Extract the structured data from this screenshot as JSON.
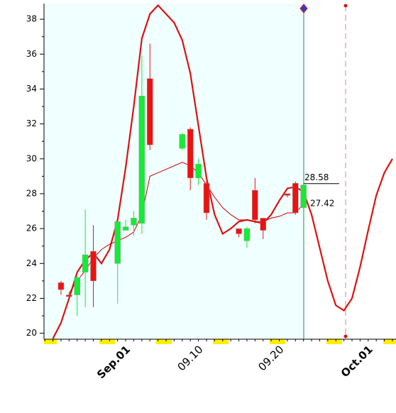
{
  "chart_data": {
    "type": "candlestick",
    "categories": [
      null,
      null,
      null,
      null,
      null,
      null,
      null,
      null,
      null,
      null,
      "Sep.01",
      null,
      null,
      null,
      null,
      null,
      null,
      null,
      null,
      "09.10",
      null,
      null,
      null,
      null,
      null,
      null,
      null,
      null,
      null,
      "09.20",
      null,
      null,
      null,
      null,
      null,
      null,
      null,
      null,
      null,
      null,
      "Oct.01",
      null,
      null,
      null
    ],
    "open": [
      null,
      null,
      22.9,
      22.2,
      22.2,
      23.5,
      24.7,
      null,
      null,
      24.0,
      25.9,
      26.2,
      26.3,
      34.6,
      null,
      null,
      null,
      30.6,
      31.7,
      28.9,
      28.6,
      null,
      null,
      null,
      26.0,
      25.3,
      28.2,
      26.6,
      null,
      null,
      28.0,
      28.6,
      27.2,
      null,
      null,
      null,
      null,
      null,
      null,
      null,
      null,
      null,
      null,
      null
    ],
    "high": [
      null,
      null,
      23.0,
      22.3,
      23.3,
      27.1,
      26.2,
      null,
      null,
      26.4,
      26.5,
      27.0,
      35.9,
      36.6,
      null,
      null,
      null,
      31.5,
      31.8,
      30.0,
      28.7,
      null,
      null,
      null,
      26.0,
      26.1,
      28.9,
      26.6,
      null,
      null,
      28.0,
      28.7,
      28.6,
      null,
      null,
      null,
      null,
      null,
      null,
      null,
      null,
      null,
      null,
      null
    ],
    "low": [
      null,
      null,
      22.2,
      22.1,
      21.0,
      21.5,
      21.5,
      null,
      null,
      21.7,
      25.9,
      25.6,
      25.7,
      30.5,
      null,
      null,
      null,
      30.5,
      28.2,
      28.5,
      26.5,
      null,
      null,
      null,
      25.5,
      24.9,
      26.3,
      25.4,
      null,
      null,
      27.8,
      26.8,
      25.2,
      null,
      null,
      null,
      null,
      null,
      null,
      null,
      null,
      null,
      null,
      null
    ],
    "close": [
      null,
      null,
      22.5,
      22.1,
      23.2,
      24.5,
      23.0,
      null,
      null,
      26.4,
      26.1,
      26.6,
      33.6,
      30.8,
      null,
      null,
      null,
      31.4,
      28.9,
      29.7,
      26.9,
      null,
      null,
      null,
      25.7,
      26.0,
      26.5,
      25.9,
      null,
      null,
      27.9,
      26.9,
      28.5,
      null,
      null,
      null,
      null,
      null,
      null,
      null,
      null,
      null,
      null,
      null
    ],
    "up_color": "#11ee33",
    "down_color": "#ee1111",
    "lines": [
      {
        "color": "#dd1111",
        "width": 2.2,
        "values": [
          null,
          19.7,
          20.6,
          22.0,
          23.5,
          24.2,
          24.6,
          24.0,
          24.8,
          26.5,
          29.5,
          33.0,
          36.9,
          38.3,
          38.8,
          38.3,
          37.8,
          36.8,
          34.9,
          31.9,
          28.9,
          26.8,
          25.7,
          26.0,
          26.4,
          26.5,
          26.4,
          26.3,
          26.8,
          27.6,
          28.3,
          28.4,
          28.1,
          26.8,
          24.9,
          23.0,
          21.6,
          21.3,
          22.0,
          23.8,
          25.9,
          27.9,
          29.2,
          30.0
        ]
      },
      {
        "color": "#cc0000",
        "width": 1,
        "values": [
          null,
          null,
          null,
          22.3,
          23.0,
          23.6,
          24.3,
          24.8,
          25.1,
          25.3,
          25.5,
          25.8,
          26.8,
          29.0,
          29.2,
          29.4,
          29.6,
          29.8,
          29.6,
          29.2,
          28.5,
          27.8,
          27.2,
          26.8,
          26.5,
          26.5,
          26.4,
          26.4,
          26.6,
          26.7,
          26.9,
          26.9,
          27.4,
          null,
          null,
          null,
          null,
          null,
          null,
          null,
          null,
          null,
          null,
          null
        ]
      }
    ],
    "price_labels": [
      28.58,
      27.42
    ],
    "ylim": [
      19.7,
      38.9
    ],
    "yticks": [
      20,
      22,
      24,
      26,
      28,
      30,
      32,
      34,
      36,
      38
    ]
  }
}
